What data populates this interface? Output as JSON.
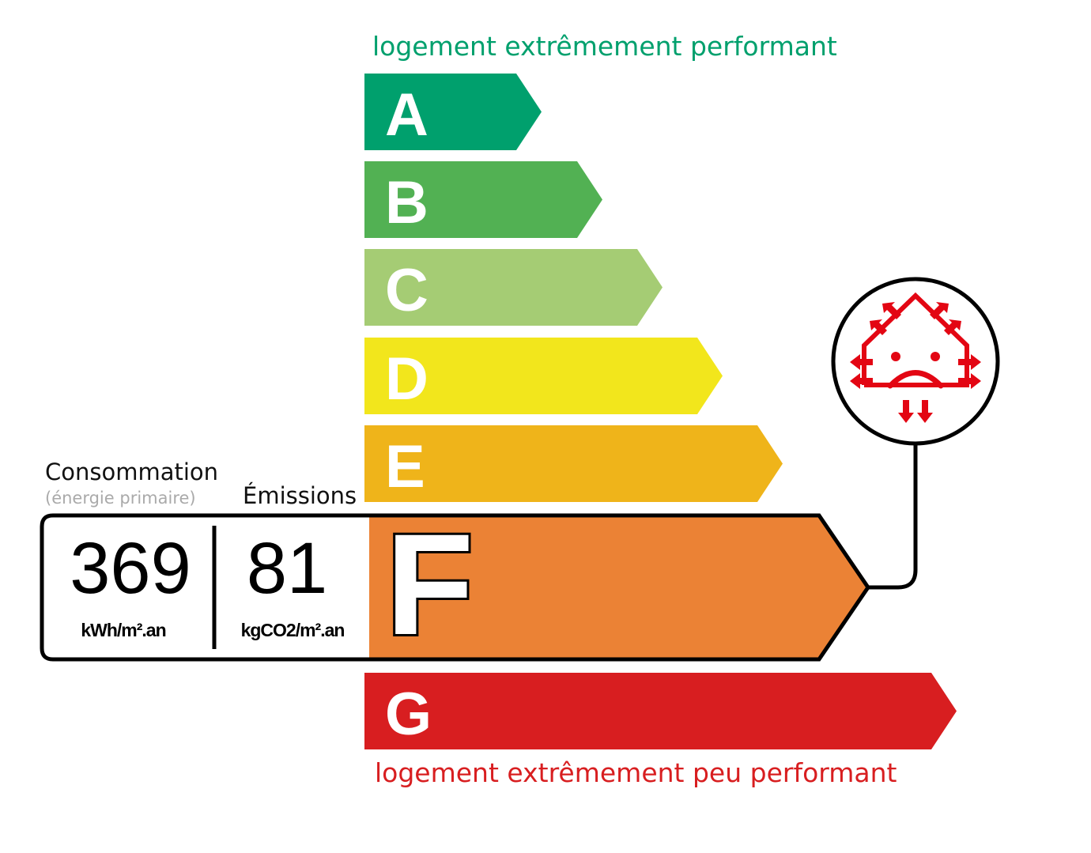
{
  "labels": {
    "top": "logement extrêmement performant",
    "bottom": "logement extrêmement peu performant",
    "consumption": "Consommation",
    "consumption_sub": "(énergie primaire)",
    "emissions": "Émissions"
  },
  "classes": [
    {
      "letter": "A",
      "color": "#00a06d"
    },
    {
      "letter": "B",
      "color": "#52b153"
    },
    {
      "letter": "C",
      "color": "#a5cc74"
    },
    {
      "letter": "D",
      "color": "#f2e61c"
    },
    {
      "letter": "E",
      "color": "#efb41a"
    },
    {
      "letter": "F",
      "color": "#eb8235"
    },
    {
      "letter": "G",
      "color": "#d81e20"
    }
  ],
  "current_class": "F",
  "values": {
    "consumption": "369",
    "consumption_unit": "kWh/m².an",
    "emissions": "81",
    "emissions_unit": "kgCO2/m².an"
  },
  "icon": "house-heat-loss-sad-icon",
  "colors": {
    "top_text": "#00a06d",
    "bottom_text": "#d81e20",
    "icon": "#e30613"
  }
}
